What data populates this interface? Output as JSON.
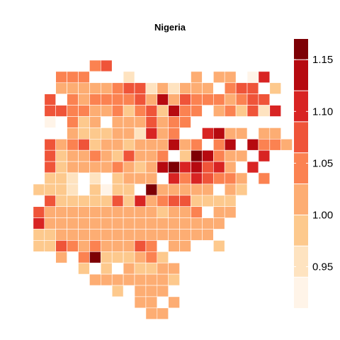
{
  "title": "Nigeria",
  "chart_data": {
    "type": "heatmap",
    "title": "Nigeria",
    "legend": {
      "placement": "right",
      "breaks": [
        0.91,
        0.94,
        0.97,
        1.0,
        1.03,
        1.06,
        1.09,
        1.12,
        1.15,
        1.17
      ],
      "ticks": [
        "0.95",
        "1.00",
        "1.05",
        "1.10",
        "1.15"
      ],
      "tick_values": [
        0.95,
        1.0,
        1.05,
        1.1,
        1.15
      ],
      "colors": [
        "#fff4e8",
        "#fee3c0",
        "#fdc98d",
        "#fdad73",
        "#fb8251",
        "#ef5439",
        "#d82423",
        "#b60a10",
        "#7d0005"
      ]
    },
    "grid": {
      "legend_symbols": {
        "0": "#fff4e8",
        "1": "#fee3c0",
        "2": "#fdc98d",
        "3": "#fdad73",
        "4": "#fb8251",
        "5": "#ef5439",
        "6": "#d82423",
        "7": "#b60a10",
        "8": "#7d0005",
        "w": "#ffffff"
      },
      "rows": [
        "......45................",
        "...444...1.....3.33.06..",
        "...33333455131333.455.2.",
        "..5.434444537354443455..",
        "..55443342452744.342516.",
        "..0.423.3335344.........",
        "....3222331634..6733.33.",
        "..53452332333734.47w7443",
        "..52334325334.287433.6..",
        "..52333343237867563.6...",
        "..221.1.2333.6465443.4..",
        ".2221.2022.833333.32....",
        "..52222252634552222.....",
        ".533333333332334.33.....",
        ".63333333333333333......",
        ".2233333333333333.......",
        ".22543433354.33..2......",
        "...3.48222342...........",
        ".....2.2.32233..........",
        "......33333332..........",
        "........2.333...........",
        "..........33.3..........",
        "...........33..........."
      ]
    }
  }
}
